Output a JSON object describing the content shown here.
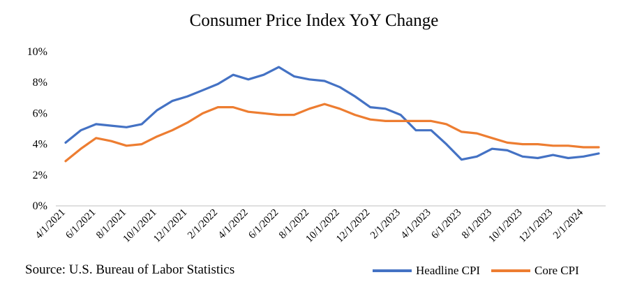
{
  "chart_data": {
    "type": "line",
    "title": "Consumer Price Index YoY Change",
    "xlabel": "",
    "ylabel": "",
    "ylim": [
      0,
      10
    ],
    "y_ticks": [
      "0%",
      "2%",
      "4%",
      "6%",
      "8%",
      "10%"
    ],
    "x_tick_labels": [
      "4/1/2021",
      "6/1/2021",
      "8/1/2021",
      "10/1/2021",
      "12/1/2021",
      "2/1/2022",
      "4/1/2022",
      "6/1/2022",
      "8/1/2022",
      "10/1/2022",
      "12/1/2022",
      "2/1/2023",
      "4/1/2023",
      "6/1/2023",
      "8/1/2023",
      "10/1/2023",
      "12/1/2023",
      "2/1/2024"
    ],
    "x": [
      "4/1/2021",
      "5/1/2021",
      "6/1/2021",
      "7/1/2021",
      "8/1/2021",
      "9/1/2021",
      "10/1/2021",
      "11/1/2021",
      "12/1/2021",
      "1/1/2022",
      "2/1/2022",
      "3/1/2022",
      "4/1/2022",
      "5/1/2022",
      "6/1/2022",
      "7/1/2022",
      "8/1/2022",
      "9/1/2022",
      "10/1/2022",
      "11/1/2022",
      "12/1/2022",
      "1/1/2023",
      "2/1/2023",
      "3/1/2023",
      "4/1/2023",
      "5/1/2023",
      "6/1/2023",
      "7/1/2023",
      "8/1/2023",
      "9/1/2023",
      "10/1/2023",
      "11/1/2023",
      "12/1/2023",
      "1/1/2024",
      "2/1/2024",
      "3/1/2024"
    ],
    "series": [
      {
        "name": "Headline CPI",
        "color": "#4472C4",
        "values": [
          4.1,
          4.9,
          5.3,
          5.2,
          5.1,
          5.3,
          6.2,
          6.8,
          7.1,
          7.5,
          7.9,
          8.5,
          8.2,
          8.5,
          9.0,
          8.4,
          8.2,
          8.1,
          7.7,
          7.1,
          6.4,
          6.3,
          5.9,
          4.9,
          4.9,
          4.0,
          3.0,
          3.2,
          3.7,
          3.6,
          3.2,
          3.1,
          3.3,
          3.1,
          3.2,
          3.4
        ]
      },
      {
        "name": "Core CPI",
        "color": "#ED7D31",
        "values": [
          2.9,
          3.7,
          4.4,
          4.2,
          3.9,
          4.0,
          4.5,
          4.9,
          5.4,
          6.0,
          6.4,
          6.4,
          6.1,
          6.0,
          5.9,
          5.9,
          6.3,
          6.6,
          6.3,
          5.9,
          5.6,
          5.5,
          5.5,
          5.5,
          5.5,
          5.3,
          4.8,
          4.7,
          4.4,
          4.1,
          4.0,
          4.0,
          3.9,
          3.9,
          3.8,
          3.8
        ]
      }
    ],
    "legend_position": "bottom-right",
    "grid": false
  },
  "source_text": "Source: U.S. Bureau of Labor Statistics"
}
